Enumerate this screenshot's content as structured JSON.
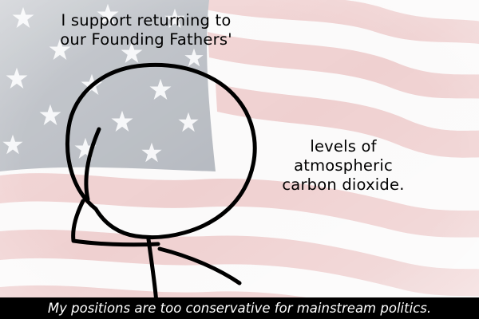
{
  "speech_top": {
    "lines": [
      "I support returning to",
      "our Founding Fathers'"
    ]
  },
  "speech_right": {
    "lines": [
      "levels of",
      "atmospheric",
      "carbon dioxide."
    ]
  },
  "caption": {
    "text": "My positions are too conservative for mainstream politics."
  },
  "background": {
    "icon": "american-flag-icon",
    "colors": {
      "stripe_red": "#ecc6c6",
      "stripe_white": "#fbf9f9",
      "canton_blue": "#a7acb4",
      "star": "#f4f5f7"
    }
  },
  "colors": {
    "text": "#000000",
    "caption_bg": "#000000",
    "caption_text": "#ffffff"
  }
}
